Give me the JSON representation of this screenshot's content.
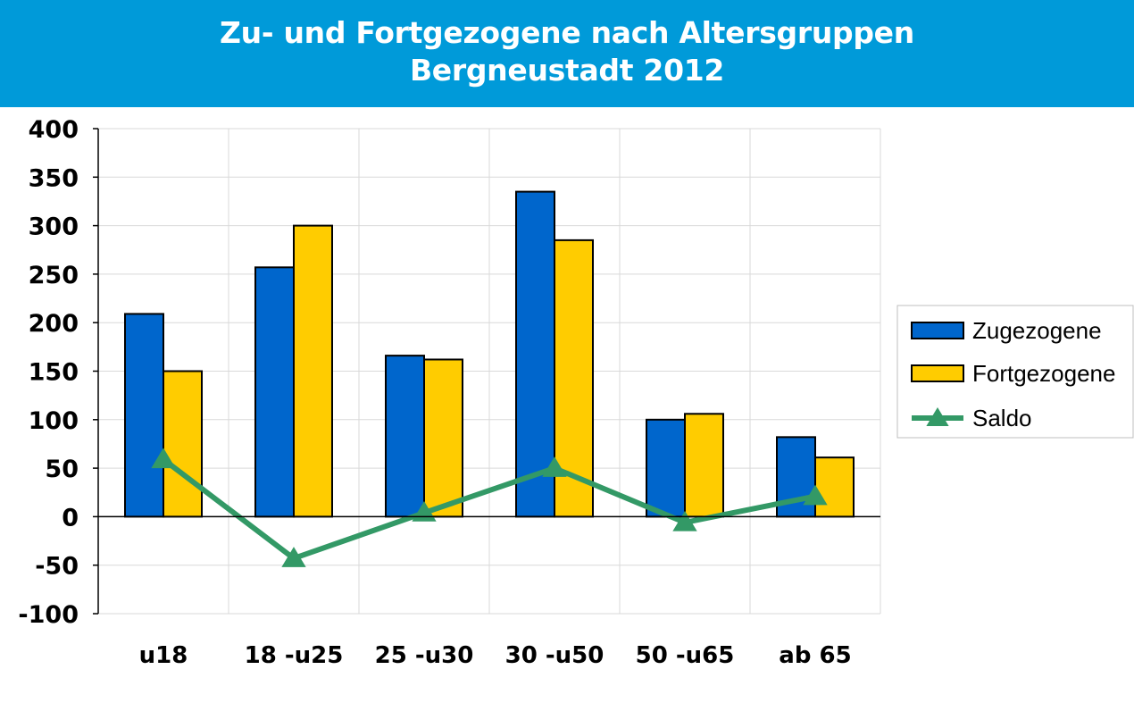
{
  "header": {
    "title_line1": "Zu- und Fortgezogene nach Altersgruppen",
    "title_line2": "Bergneustadt 2012"
  },
  "chart_data": {
    "type": "bar",
    "title": "Zu- und Fortgezogene nach Altersgruppen Bergneustadt 2012",
    "categories": [
      "u18",
      "18 -u25",
      "25 -u30",
      "30 -u50",
      "50 -u65",
      "ab 65"
    ],
    "series": [
      {
        "name": "Zugezogene",
        "type": "bar",
        "color": "#0066cc",
        "values": [
          209,
          257,
          166,
          335,
          100,
          82
        ]
      },
      {
        "name": "Fortgezogene",
        "type": "bar",
        "color": "#ffcc00",
        "values": [
          150,
          300,
          162,
          285,
          106,
          61
        ]
      },
      {
        "name": "Saldo",
        "type": "line",
        "marker": "triangle",
        "color": "#339966",
        "values": [
          59,
          -43,
          4,
          50,
          -6,
          21
        ]
      }
    ],
    "ylim": [
      -100,
      400
    ],
    "yticks": [
      400,
      350,
      300,
      250,
      200,
      150,
      100,
      50,
      0,
      -50,
      -100
    ],
    "grid": true,
    "legend_position": "right"
  }
}
